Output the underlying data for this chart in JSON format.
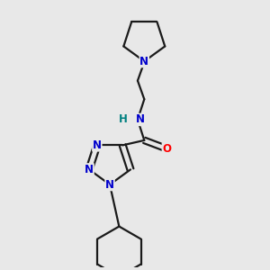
{
  "bg_color": "#e8e8e8",
  "bond_color": "#1a1a1a",
  "N_color": "#0000cc",
  "NH_color": "#008080",
  "O_color": "#ff0000",
  "line_width": 1.6,
  "figsize": [
    3.0,
    3.0
  ],
  "dpi": 100,
  "xlim": [
    0.1,
    0.9
  ],
  "ylim": [
    0.02,
    1.02
  ]
}
